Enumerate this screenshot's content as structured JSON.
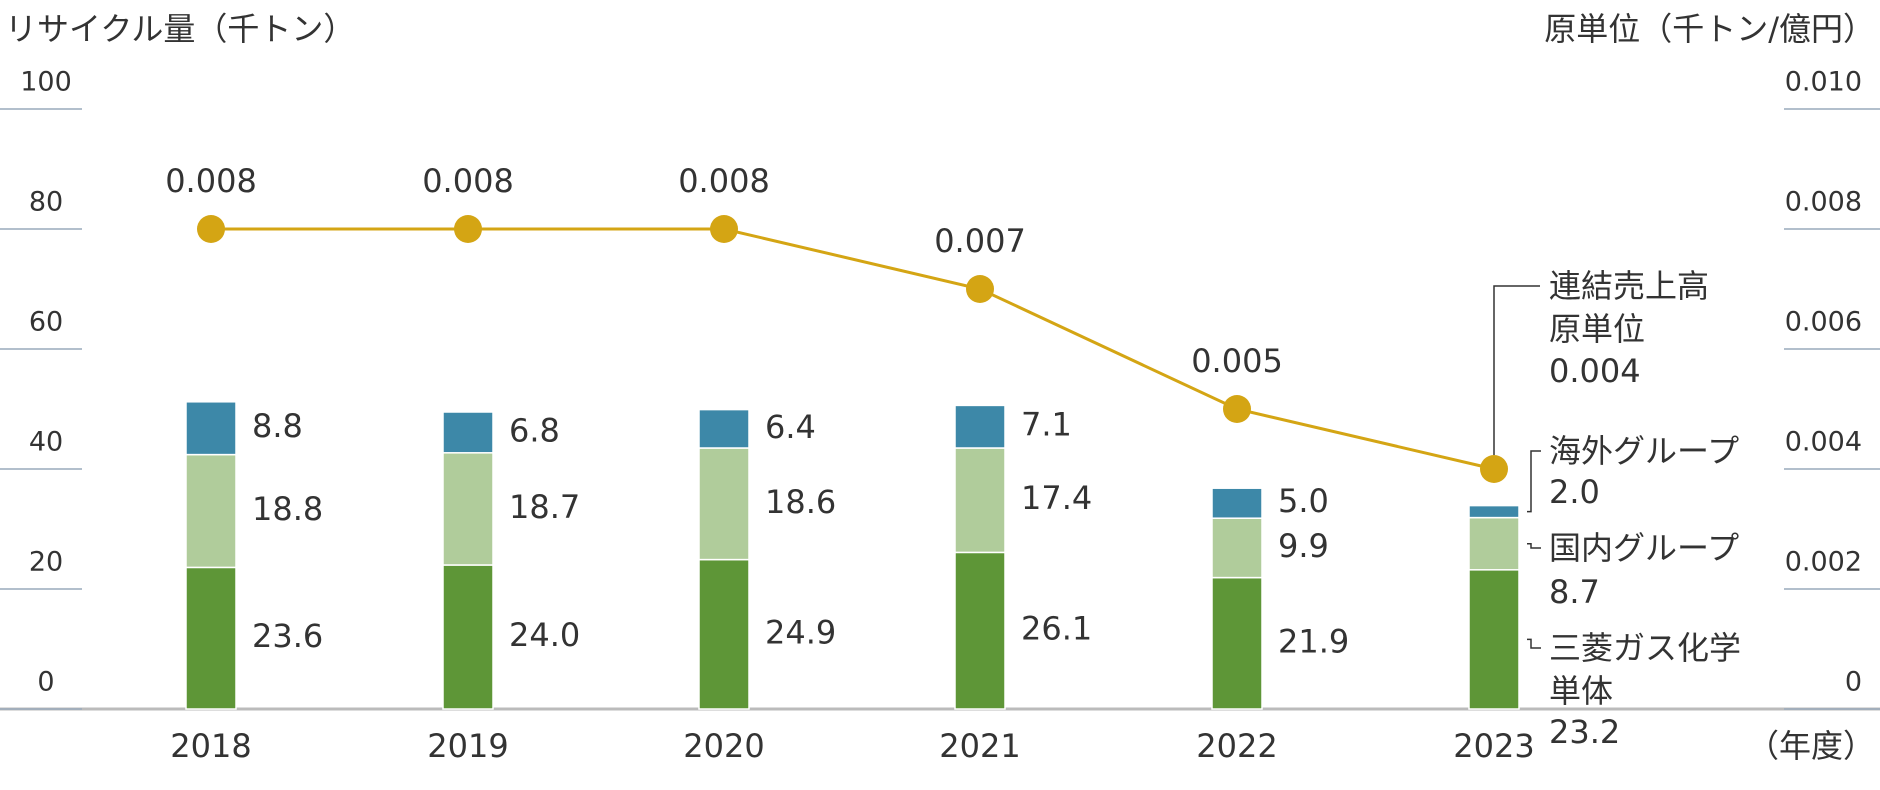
{
  "chart_data": {
    "type": "bar",
    "stacked": true,
    "y_label": "リサイクル量（千トン）",
    "y2_label": "原単位（千トン/億円）",
    "x_label": "（年度）",
    "categories": [
      "2018",
      "2019",
      "2020",
      "2021",
      "2022",
      "2023"
    ],
    "ylim": [
      0,
      100
    ],
    "yticks": [
      0,
      20,
      40,
      60,
      80,
      100
    ],
    "y2lim": [
      0,
      0.01
    ],
    "y2ticks": [
      0,
      0.002,
      0.004,
      0.006,
      0.008,
      {
        "value": 0.01,
        "label": "0.010"
      }
    ],
    "series": [
      {
        "name": "三菱ガス化学単体",
        "color": "#5e9637",
        "values": [
          23.6,
          24,
          24.9,
          26.1,
          21.9,
          23.2
        ],
        "value_labels": [
          "23.6",
          "24.0",
          "24.9",
          "26.1",
          "21.9",
          "23.2"
        ]
      },
      {
        "name": "国内グループ",
        "color": "#b0cc9b",
        "values": [
          18.8,
          18.7,
          18.6,
          17.4,
          9.9,
          8.7
        ],
        "value_labels": [
          "18.8",
          "18.7",
          "18.6",
          "17.4",
          "9.9",
          "8.7"
        ]
      },
      {
        "name": "海外グループ",
        "color": "#3d88a8",
        "values": [
          8.8,
          6.8,
          6.4,
          7.1,
          5,
          2
        ],
        "value_labels": [
          "8.8",
          "6.8",
          "6.4",
          "7.1",
          "5.0",
          "2.0"
        ]
      },
      {
        "name": "連結売上高原単位",
        "type": "line",
        "axis": "y2",
        "color": "#d4a514",
        "values": [
          0.008,
          0.008,
          0.008,
          0.007,
          0.005,
          0.004
        ]
      }
    ]
  }
}
